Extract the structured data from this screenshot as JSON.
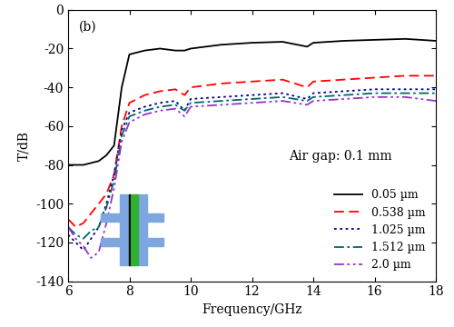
{
  "chart_data": {
    "type": "line",
    "x_label": "Frequency/GHz",
    "y_label": "T/dB",
    "annotations": [
      "(b)",
      "Air gap: 0.1 mm"
    ],
    "x": [
      6,
      6.25,
      6.5,
      6.75,
      7,
      7.25,
      7.5,
      7.75,
      8,
      8.5,
      9,
      9.5,
      9.8,
      10,
      11,
      12,
      13,
      13.8,
      14,
      15,
      16,
      17,
      18
    ],
    "series": [
      {
        "name": "0.05 µm",
        "color": "#000000",
        "line_style": "solid",
        "values": [
          -80,
          -80,
          -80,
          -79,
          -78,
          -75,
          -70,
          -40,
          -23,
          -21,
          -20,
          -21,
          -21,
          -20,
          -18,
          -17,
          -16.5,
          -19,
          -17,
          -16,
          -15.5,
          -15,
          -16
        ]
      },
      {
        "name": "0.538 µm",
        "color": "#ff0000",
        "line_style": "dashed",
        "values": [
          -108,
          -112,
          -110,
          -105,
          -100,
          -95,
          -85,
          -60,
          -48,
          -44,
          -42,
          -41,
          -44,
          -40,
          -38,
          -37,
          -36,
          -40,
          -37,
          -36,
          -35,
          -34,
          -34
        ]
      },
      {
        "name": "1.025 µm",
        "color": "#00008b",
        "line_style": "dotted",
        "values": [
          -116,
          -120,
          -124,
          -118,
          -112,
          -100,
          -85,
          -62,
          -53,
          -50,
          -48,
          -47,
          -52,
          -46,
          -45,
          -44,
          -43,
          -46,
          -43,
          -42,
          -41,
          -41,
          -41
        ]
      },
      {
        "name": "1.512 µm",
        "color": "#006666",
        "line_style": "dashdot",
        "values": [
          -112,
          -116,
          -118,
          -114,
          -112,
          -102,
          -88,
          -65,
          -55,
          -52,
          -50,
          -49,
          -52,
          -48,
          -47,
          -46,
          -45,
          -47,
          -45,
          -44,
          -43,
          -43,
          -43
        ]
      },
      {
        "name": "2.0 µm",
        "color": "#9932cc",
        "line_style": "dashdotdot",
        "values": [
          -112,
          -118,
          -122,
          -128,
          -125,
          -110,
          -92,
          -68,
          -58,
          -54,
          -52,
          -51,
          -55,
          -50,
          -49,
          -48,
          -47,
          -49,
          -47,
          -46,
          -45,
          -45,
          -47
        ]
      }
    ],
    "xlim": [
      6,
      18
    ],
    "xticks": [
      6,
      8,
      10,
      12,
      14,
      16,
      18
    ],
    "ylim": [
      -140,
      0
    ],
    "yticks": [
      -140,
      -120,
      -100,
      -80,
      -60,
      -40,
      -20,
      0
    ],
    "legend": "lower right",
    "grid": false
  }
}
